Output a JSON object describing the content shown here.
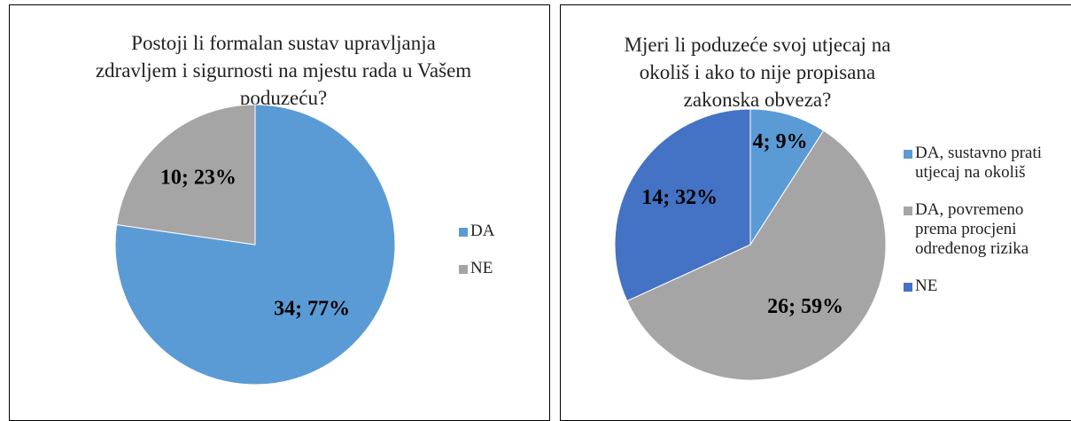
{
  "chart_data": [
    {
      "type": "pie",
      "title": "Postoji li formalan sustav upravljanja zdravljem i sigurnosti na mjestu rada u Vašem poduzeću?",
      "categories": [
        "DA",
        "NE"
      ],
      "values": [
        34,
        10
      ],
      "value_labels": [
        "34; 77%",
        "10; 23%"
      ],
      "colors": [
        "#5b9bd5",
        "#a5a5a5"
      ],
      "legend": "right"
    },
    {
      "type": "pie",
      "title": "Mjeri li poduzeće svoj utjecaj na okoliš i ako to nije propisana zakonska obveza?",
      "categories": [
        "DA, sustavno prati utjecaj na okoliš",
        "DA, povremeno prema procjeni određenog rizika",
        "NE"
      ],
      "values": [
        4,
        26,
        14
      ],
      "value_labels": [
        "4; 9%",
        "26; 59%",
        "14; 32%"
      ],
      "colors": [
        "#5b9bd5",
        "#a5a5a5",
        "#4472c4"
      ],
      "legend": "right"
    }
  ]
}
